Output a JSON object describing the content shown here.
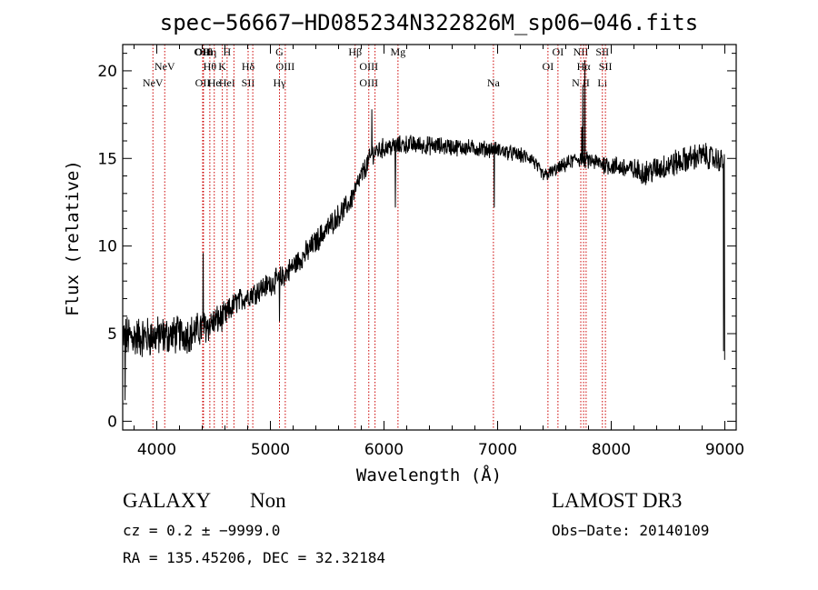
{
  "chart_data": {
    "type": "line",
    "title": "spec−56667−HD085234N322826M_sp06−046.fits",
    "xlabel": "Wavelength (Å)",
    "ylabel": "Flux (relative)",
    "xlim": [
      3700,
      9100
    ],
    "ylim": [
      -0.5,
      21.5
    ],
    "x_ticks": [
      4000,
      5000,
      6000,
      7000,
      8000,
      9000
    ],
    "x_tick_labels": [
      "4000",
      "5000",
      "6000",
      "7000",
      "8000",
      "9000"
    ],
    "y_ticks": [
      0,
      5,
      10,
      15,
      20
    ],
    "y_tick_labels": [
      "0",
      "5",
      "10",
      "15",
      "20"
    ],
    "line_color": "#000000",
    "marker_color": "#cc0000",
    "series": [
      {
        "name": "flux",
        "continuum": [
          [
            3700,
            4.8
          ],
          [
            3900,
            4.8
          ],
          [
            4100,
            4.9
          ],
          [
            4300,
            5.0
          ],
          [
            4400,
            5.3
          ],
          [
            4600,
            6.0
          ],
          [
            4700,
            6.8
          ],
          [
            4900,
            7.5
          ],
          [
            5100,
            8.2
          ],
          [
            5300,
            9.5
          ],
          [
            5500,
            11.0
          ],
          [
            5700,
            12.5
          ],
          [
            5800,
            14.0
          ],
          [
            5900,
            15.3
          ],
          [
            6000,
            15.6
          ],
          [
            6200,
            15.8
          ],
          [
            6500,
            15.7
          ],
          [
            7000,
            15.5
          ],
          [
            7300,
            15.0
          ],
          [
            7400,
            14.0
          ],
          [
            7500,
            14.3
          ],
          [
            7700,
            15.0
          ],
          [
            8000,
            14.6
          ],
          [
            8300,
            14.2
          ],
          [
            8500,
            14.6
          ],
          [
            8800,
            15.2
          ],
          [
            9000,
            14.8
          ]
        ],
        "noise": [
          [
            3700,
            1.1
          ],
          [
            4000,
            1.0
          ],
          [
            4400,
            0.9
          ],
          [
            4700,
            0.6
          ],
          [
            5000,
            0.6
          ],
          [
            5500,
            0.6
          ],
          [
            6000,
            0.5
          ],
          [
            7000,
            0.4
          ],
          [
            7500,
            0.35
          ],
          [
            8000,
            0.5
          ],
          [
            8500,
            0.7
          ],
          [
            9000,
            0.6
          ]
        ],
        "features": [
          {
            "x": 3722,
            "y": 1.2
          },
          {
            "x": 4408,
            "y": 9.6
          },
          {
            "x": 5080,
            "y": 5.7
          },
          {
            "x": 5893,
            "y": 17.8
          },
          {
            "x": 6100,
            "y": 12.2
          },
          {
            "x": 6970,
            "y": 12.2
          },
          {
            "x": 7750,
            "y": 19.2
          },
          {
            "x": 7768,
            "y": 20.6
          },
          {
            "x": 7740,
            "y": 16.8
          },
          {
            "x": 8990,
            "y": 4.0
          },
          {
            "x": 9000,
            "y": 3.5
          }
        ]
      }
    ],
    "lines": [
      {
        "x": 3966,
        "labels": [
          "NeV"
        ],
        "row": [
          8
        ]
      },
      {
        "x": 4070,
        "labels": [
          "NeV"
        ],
        "row": [
          7
        ]
      },
      {
        "x": 4404,
        "labels": [
          "OII",
          "OII"
        ],
        "row": [
          5,
          8
        ]
      },
      {
        "x": 4411,
        "labels": [
          "OIII"
        ],
        "row": [
          5.6
        ]
      },
      {
        "x": 4467,
        "labels": [
          "Hη",
          "Hθ"
        ],
        "row": [
          5,
          7
        ]
      },
      {
        "x": 4506,
        "labels": [
          "He"
        ],
        "row": [
          8
        ]
      },
      {
        "x": 4577,
        "labels": [
          "K"
        ],
        "row": [
          7
        ]
      },
      {
        "x": 4619,
        "labels": [
          "H",
          "HeI"
        ],
        "row": [
          5,
          8
        ]
      },
      {
        "x": 4679,
        "labels": [],
        "row": []
      },
      {
        "x": 4804,
        "labels": [
          "Hδ",
          "SII"
        ],
        "row": [
          7,
          8
        ]
      },
      {
        "x": 4845,
        "labels": [],
        "row": []
      },
      {
        "x": 5080,
        "labels": [
          "G",
          "Hγ"
        ],
        "row": [
          5,
          8
        ]
      },
      {
        "x": 5131,
        "labels": [
          "OIII"
        ],
        "row": [
          7
        ]
      },
      {
        "x": 5746,
        "labels": [
          "Hβ"
        ],
        "row": [
          5
        ]
      },
      {
        "x": 5866,
        "labels": [
          "OIII",
          "OIII"
        ],
        "row": [
          7,
          8
        ]
      },
      {
        "x": 5921,
        "labels": [],
        "row": []
      },
      {
        "x": 6123,
        "labels": [
          "Mg"
        ],
        "row": [
          5
        ]
      },
      {
        "x": 6963,
        "labels": [
          "Na"
        ],
        "row": [
          8
        ]
      },
      {
        "x": 7443,
        "labels": [
          "OI"
        ],
        "row": [
          7
        ]
      },
      {
        "x": 7531,
        "labels": [
          "OI"
        ],
        "row": [
          5
        ]
      },
      {
        "x": 7732,
        "labels": [
          "NII",
          "N II"
        ],
        "row": [
          5,
          8
        ]
      },
      {
        "x": 7757,
        "labels": [
          "Hα"
        ],
        "row": [
          7
        ]
      },
      {
        "x": 7779,
        "labels": [],
        "row": []
      },
      {
        "x": 7922,
        "labels": [
          "SII",
          "Li"
        ],
        "row": [
          5,
          8
        ]
      },
      {
        "x": 7949,
        "labels": [
          "SII"
        ],
        "row": [
          7
        ]
      }
    ]
  },
  "footer": {
    "object_type": "GALAXY",
    "subclass": "Non",
    "survey": "LAMOST DR3",
    "cz": "cz = 0.2 ± −9999.0",
    "obs_date": "Obs−Date: 20140109",
    "coords": "RA = 135.45206, DEC =  32.32184"
  }
}
